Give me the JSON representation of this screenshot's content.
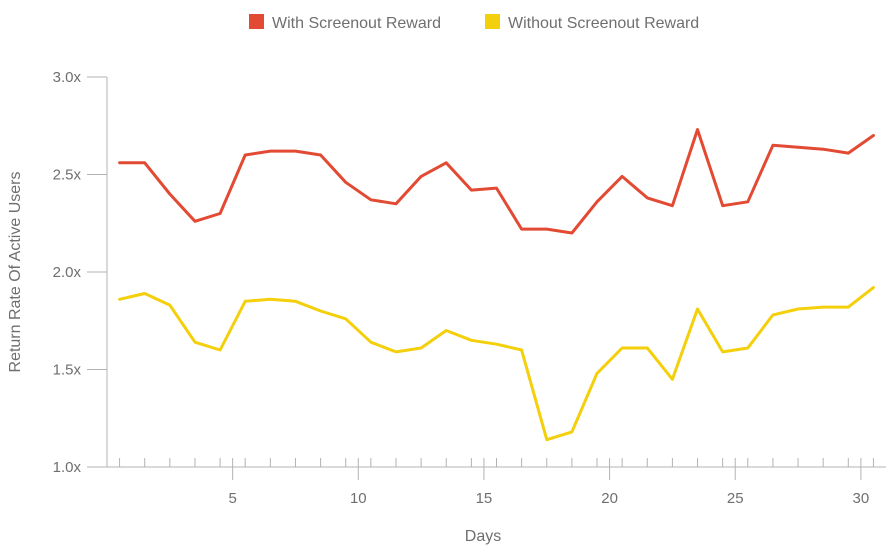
{
  "chart_data": {
    "type": "line",
    "xlabel": "Days",
    "ylabel": "Return Rate Of Active Users",
    "xlim": [
      0,
      31
    ],
    "ylim": [
      1.0,
      3.0
    ],
    "x_ticks": [
      5,
      10,
      15,
      20,
      25,
      30
    ],
    "x_tick_labels": [
      "5",
      "10",
      "15",
      "20",
      "25",
      "30"
    ],
    "y_ticks": [
      1.0,
      1.5,
      2.0,
      2.5,
      3.0
    ],
    "y_tick_labels": [
      "1.0x",
      "1.5x",
      "2.0x",
      "2.5x",
      "3.0x"
    ],
    "grid": false,
    "legend_position": "top",
    "x": [
      0.5,
      1.5,
      2.5,
      3.5,
      4.5,
      5.5,
      6.5,
      7.5,
      8.5,
      9.5,
      10.5,
      11.5,
      12.5,
      13.5,
      14.5,
      15.5,
      16.5,
      17.5,
      18.5,
      19.5,
      20.5,
      21.5,
      22.5,
      23.5,
      24.5,
      25.5,
      26.5,
      27.5,
      28.5,
      29.5,
      30.5
    ],
    "series": [
      {
        "name": "With Screenout Reward",
        "color": "#e24a33",
        "values": [
          2.56,
          2.56,
          2.4,
          2.26,
          2.3,
          2.6,
          2.62,
          2.62,
          2.6,
          2.46,
          2.37,
          2.35,
          2.49,
          2.56,
          2.42,
          2.43,
          2.22,
          2.22,
          2.2,
          2.36,
          2.49,
          2.38,
          2.34,
          2.73,
          2.34,
          2.36,
          2.65,
          2.64,
          2.63,
          2.61,
          2.7
        ]
      },
      {
        "name": "Without Screenout Reward",
        "color": "#f4cf0b",
        "values": [
          1.86,
          1.89,
          1.83,
          1.64,
          1.6,
          1.85,
          1.86,
          1.85,
          1.8,
          1.76,
          1.64,
          1.59,
          1.61,
          1.7,
          1.65,
          1.63,
          1.6,
          1.14,
          1.18,
          1.48,
          1.61,
          1.61,
          1.45,
          1.81,
          1.59,
          1.61,
          1.78,
          1.81,
          1.82,
          1.82,
          1.92
        ]
      }
    ]
  }
}
